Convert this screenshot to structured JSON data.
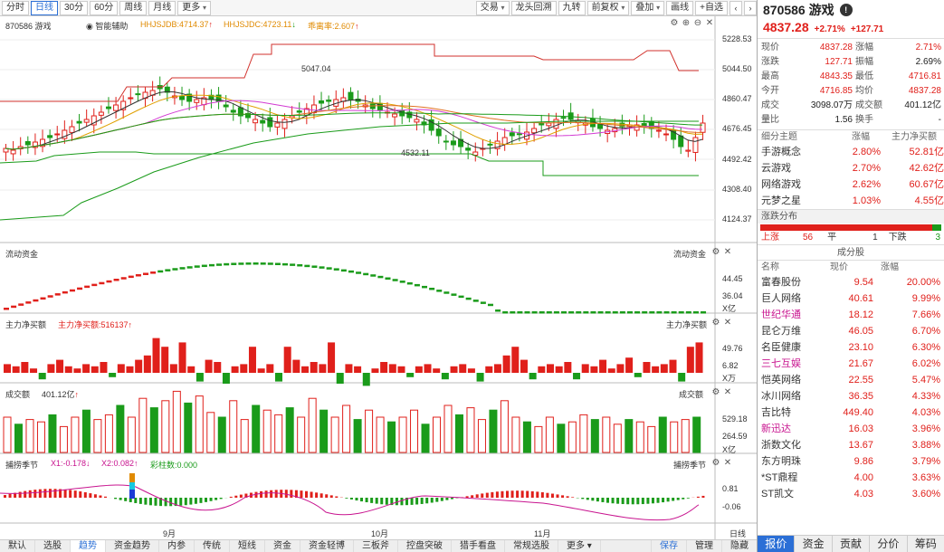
{
  "toolbar": {
    "periods": [
      "分时",
      "日线",
      "30分",
      "60分",
      "周线",
      "月线",
      "更多"
    ],
    "active_period": "日线",
    "right_buttons": [
      "交易",
      "龙头回溯",
      "九转",
      "前复权",
      "叠加",
      "画线",
      "自选"
    ]
  },
  "main_chart": {
    "stock_label": "870586 游戏",
    "smart_assist": "智能辅助",
    "ind1": "HHJSJDB:4714.37",
    "ind2": "HHJSJDC:4723.11",
    "ind3": "乖离率:2.607",
    "y_axis": [
      "5228.53",
      "5044.50",
      "4860.47",
      "4676.45",
      "4492.42",
      "4308.40",
      "4124.37"
    ],
    "ylim": [
      4124.37,
      5228.53
    ],
    "high_marker": "5047.04",
    "low_marker": "4532.11"
  },
  "liquidity_panel": {
    "title": "流动资金",
    "title_right": "流动资金",
    "y_axis": [
      "44.45",
      "36.04"
    ],
    "unit": "X亿"
  },
  "main_flow_panel": {
    "title": "主力净买额",
    "value_label": "主力净买额:516137",
    "title_right": "主力净买额",
    "y_axis": [
      "49.76",
      "6.82"
    ],
    "unit": "X万"
  },
  "volume_panel": {
    "title": "成交额",
    "value": "401.12亿",
    "title_right": "成交额",
    "y_axis": [
      "529.18",
      "264.59"
    ],
    "unit": "X亿"
  },
  "season_panel": {
    "title": "捕捞季节",
    "x1": "X1:-0.178",
    "x2": "X2:0.082",
    "bars": "彩柱数:0.000",
    "title_right": "捕捞季节",
    "y_axis": [
      "0.81",
      "-0.06"
    ]
  },
  "x_axis": {
    "months": [
      "9月",
      "10月",
      "11月"
    ],
    "period_label": "日线"
  },
  "bottom_tabs": [
    "默认",
    "选股",
    "趋势",
    "资金趋势",
    "内参",
    "传统",
    "短线",
    "资金",
    "资金轻博",
    "三板斧",
    "控盘突破",
    "猎手看盘",
    "常规选股",
    "更多"
  ],
  "bottom_active": "趋势",
  "bottom_right": [
    "保存",
    "管理",
    "隐藏"
  ],
  "quote": {
    "code_name": "870586 游戏",
    "price": "4837.28",
    "change_pct": "+2.71%",
    "change": "+127.71",
    "rows": [
      [
        "现价",
        "4837.28",
        "涨幅",
        "2.71%"
      ],
      [
        "涨跌",
        "127.71",
        "振幅",
        "2.69%"
      ],
      [
        "最高",
        "4843.35",
        "最低",
        "4716.81"
      ],
      [
        "今开",
        "4716.85",
        "均价",
        "4837.28"
      ],
      [
        "成交量",
        "3098.07万",
        "成交额",
        "401.12亿"
      ],
      [
        "量比",
        "1.56",
        "换手",
        "-"
      ]
    ]
  },
  "themes": {
    "head": [
      "细分主题",
      "涨幅",
      "主力净买额"
    ],
    "rows": [
      [
        "手游概念",
        "2.80%",
        "52.81亿"
      ],
      [
        "云游戏",
        "2.70%",
        "42.62亿"
      ],
      [
        "网络游戏",
        "2.62%",
        "60.67亿"
      ],
      [
        "元梦之星",
        "1.03%",
        "4.55亿"
      ]
    ]
  },
  "distribution": {
    "title": "涨跌分布",
    "up_label": "上涨",
    "up": "56",
    "flat_label": "平",
    "flat": "1",
    "down_label": "下跌",
    "down": "3",
    "up_fraction": 0.95
  },
  "components": {
    "title": "成分股",
    "head": [
      "名称",
      "现价",
      "涨幅"
    ],
    "rows": [
      [
        "富春股份",
        "9.54",
        "20.00%",
        false
      ],
      [
        "巨人网络",
        "40.61",
        "9.99%",
        false
      ],
      [
        "世纪华通",
        "18.12",
        "7.66%",
        true
      ],
      [
        "昆仑万维",
        "46.05",
        "6.70%",
        false
      ],
      [
        "名臣健康",
        "23.10",
        "6.30%",
        false
      ],
      [
        "三七互娱",
        "21.67",
        "6.02%",
        true
      ],
      [
        "恺英网络",
        "22.55",
        "5.47%",
        false
      ],
      [
        "冰川网络",
        "36.35",
        "4.33%",
        false
      ],
      [
        "吉比特",
        "449.40",
        "4.03%",
        false
      ],
      [
        "新迅达",
        "16.03",
        "3.96%",
        true
      ],
      [
        "浙数文化",
        "13.67",
        "3.88%",
        false
      ],
      [
        "东方明珠",
        "9.86",
        "3.79%",
        false
      ],
      [
        "*ST鼎程",
        "4.00",
        "3.63%",
        false
      ],
      [
        "ST凯文",
        "4.03",
        "3.60%",
        false
      ]
    ]
  },
  "right_tabs": [
    "报价",
    "资金",
    "贡献",
    "分价",
    "筹码"
  ],
  "right_tab_active": "报价",
  "colors": {
    "up": "#e0201b",
    "down": "#1a9b1a",
    "accent": "#2b6fd6"
  }
}
